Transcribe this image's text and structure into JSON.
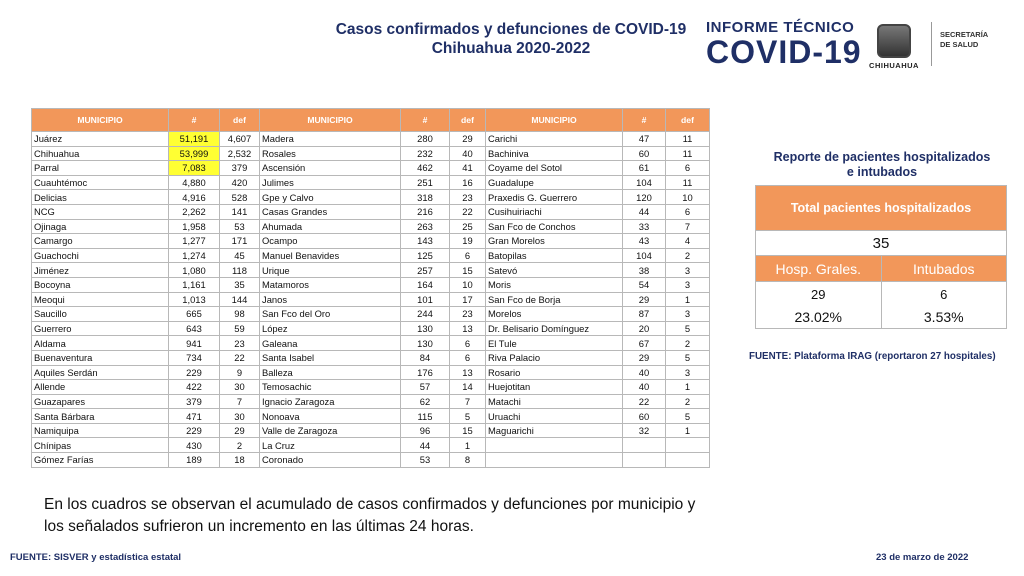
{
  "header": {
    "title_line1": "Casos confirmados y defunciones de COVID-19",
    "title_line2": "Chihuahua 2020-2022",
    "brand_line1": "INFORME TÉCNICO",
    "brand_line2": "COVID-19",
    "logo_text": "CHIHUAHUA",
    "secretaria_line1": "SECRETARÍA",
    "secretaria_line2": "DE SALUD"
  },
  "table": {
    "headers": [
      "MUNICIPIO",
      "#",
      "def"
    ],
    "rows": [
      [
        [
          "Juárez",
          "51,191",
          "4,607",
          true
        ],
        [
          "Madera",
          "280",
          "29",
          false
        ],
        [
          "Carichi",
          "47",
          "11",
          false
        ]
      ],
      [
        [
          "Chihuahua",
          "53,999",
          "2,532",
          true
        ],
        [
          "Rosales",
          "232",
          "40",
          false
        ],
        [
          "Bachiniva",
          "60",
          "11",
          false
        ]
      ],
      [
        [
          "Parral",
          "7,083",
          "379",
          true
        ],
        [
          "Ascensión",
          "462",
          "41",
          false
        ],
        [
          "Coyame del Sotol",
          "61",
          "6",
          false
        ]
      ],
      [
        [
          "Cuauhtémoc",
          "4,880",
          "420",
          false
        ],
        [
          "Julimes",
          "251",
          "16",
          false
        ],
        [
          "Guadalupe",
          "104",
          "11",
          false
        ]
      ],
      [
        [
          "Delicias",
          "4,916",
          "528",
          false
        ],
        [
          "Gpe y Calvo",
          "318",
          "23",
          false
        ],
        [
          "Praxedis G. Guerrero",
          "120",
          "10",
          false
        ]
      ],
      [
        [
          "NCG",
          "2,262",
          "141",
          false
        ],
        [
          "Casas Grandes",
          "216",
          "22",
          false
        ],
        [
          "Cusihuiriachi",
          "44",
          "6",
          false
        ]
      ],
      [
        [
          "Ojinaga",
          "1,958",
          "53",
          false
        ],
        [
          "Ahumada",
          "263",
          "25",
          false
        ],
        [
          "San Fco de Conchos",
          "33",
          "7",
          false
        ]
      ],
      [
        [
          "Camargo",
          "1,277",
          "171",
          false
        ],
        [
          "Ocampo",
          "143",
          "19",
          false
        ],
        [
          "Gran Morelos",
          "43",
          "4",
          false
        ]
      ],
      [
        [
          "Guachochi",
          "1,274",
          "45",
          false
        ],
        [
          "Manuel Benavides",
          "125",
          "6",
          false
        ],
        [
          "Batopilas",
          "104",
          "2",
          false
        ]
      ],
      [
        [
          "Jiménez",
          "1,080",
          "118",
          false
        ],
        [
          "Urique",
          "257",
          "15",
          false
        ],
        [
          "Satevó",
          "38",
          "3",
          false
        ]
      ],
      [
        [
          "Bocoyna",
          "1,161",
          "35",
          false
        ],
        [
          "Matamoros",
          "164",
          "10",
          false
        ],
        [
          "Moris",
          "54",
          "3",
          false
        ]
      ],
      [
        [
          "Meoqui",
          "1,013",
          "144",
          false
        ],
        [
          "Janos",
          "101",
          "17",
          false
        ],
        [
          "San Fco de Borja",
          "29",
          "1",
          false
        ]
      ],
      [
        [
          "Saucillo",
          "665",
          "98",
          false
        ],
        [
          "San Fco del Oro",
          "244",
          "23",
          false
        ],
        [
          "Morelos",
          "87",
          "3",
          false
        ]
      ],
      [
        [
          "Guerrero",
          "643",
          "59",
          false
        ],
        [
          "López",
          "130",
          "13",
          false
        ],
        [
          "Dr. Belisario Domínguez",
          "20",
          "5",
          false
        ]
      ],
      [
        [
          "Aldama",
          "941",
          "23",
          false
        ],
        [
          "Galeana",
          "130",
          "6",
          false
        ],
        [
          "El Tule",
          "67",
          "2",
          false
        ]
      ],
      [
        [
          "Buenaventura",
          "734",
          "22",
          false
        ],
        [
          "Santa Isabel",
          "84",
          "6",
          false
        ],
        [
          "Riva Palacio",
          "29",
          "5",
          false
        ]
      ],
      [
        [
          "Aquiles Serdán",
          "229",
          "9",
          false
        ],
        [
          "Balleza",
          "176",
          "13",
          false
        ],
        [
          "Rosario",
          "40",
          "3",
          false
        ]
      ],
      [
        [
          "Allende",
          "422",
          "30",
          false
        ],
        [
          "Temosachic",
          "57",
          "14",
          false
        ],
        [
          "Huejotitan",
          "40",
          "1",
          false
        ]
      ],
      [
        [
          "Guazapares",
          "379",
          "7",
          false
        ],
        [
          "Ignacio Zaragoza",
          "62",
          "7",
          false
        ],
        [
          "Matachi",
          "22",
          "2",
          false
        ]
      ],
      [
        [
          "Santa Bárbara",
          "471",
          "30",
          false
        ],
        [
          "Nonoava",
          "115",
          "5",
          false
        ],
        [
          "Uruachi",
          "60",
          "5",
          false
        ]
      ],
      [
        [
          "Namiquipa",
          "229",
          "29",
          false
        ],
        [
          "Valle de Zaragoza",
          "96",
          "15",
          false
        ],
        [
          "Maguarichi",
          "32",
          "1",
          false
        ]
      ],
      [
        [
          "Chínipas",
          "430",
          "2",
          false
        ],
        [
          "La Cruz",
          "44",
          "1",
          false
        ],
        [
          "",
          "",
          "",
          false
        ]
      ],
      [
        [
          "Gómez Farías",
          "189",
          "18",
          false
        ],
        [
          "Coronado",
          "53",
          "8",
          false
        ],
        [
          "",
          "",
          "",
          false
        ]
      ]
    ]
  },
  "report": {
    "title_line1": "Reporte de pacientes hospitalizados",
    "title_line2": "e intubados",
    "total_label": "Total pacientes hospitalizados",
    "total_value": "35",
    "hosp_label": "Hosp. Grales.",
    "intub_label": "Intubados",
    "hosp_value": "29",
    "intub_value": "6",
    "hosp_pct": "23.02%",
    "intub_pct": "3.53%",
    "source": "FUENTE: Plataforma IRAG (reportaron 27 hospitales)"
  },
  "footer": {
    "description": "En los cuadros se observan el acumulado de casos confirmados y defunciones por municipio y los señalados sufrieron un incremento en las últimas 24 horas.",
    "source": "FUENTE: SISVER y estadística estatal",
    "date": "23 de marzo de 2022"
  },
  "colors": {
    "header_orange": "#f2975a",
    "highlight_yellow": "#ffff33",
    "title_navy": "#1f2f66"
  }
}
